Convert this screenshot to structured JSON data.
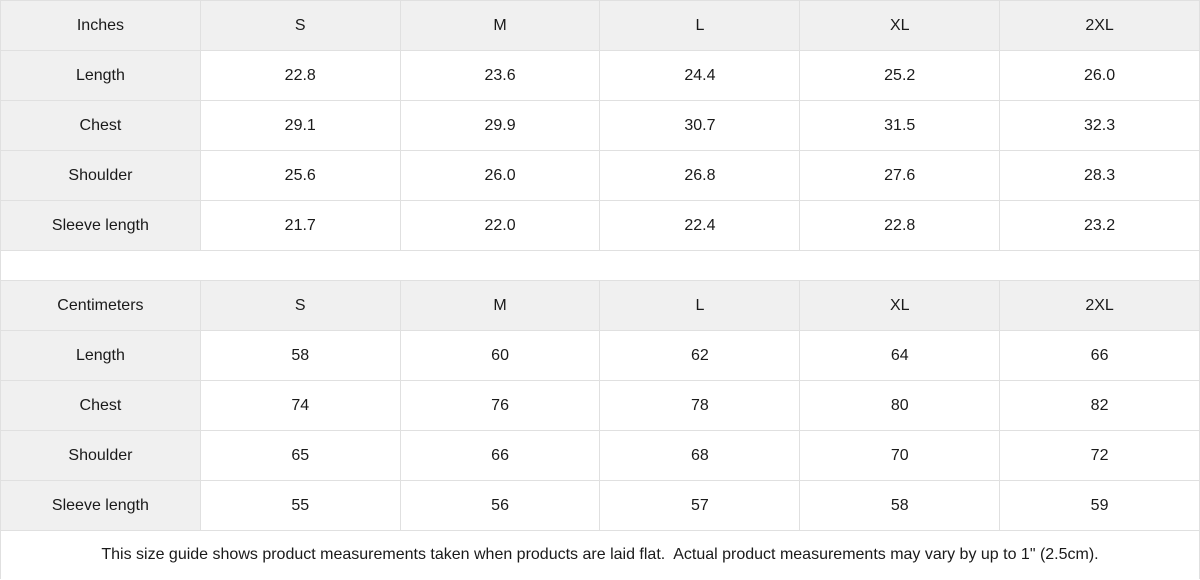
{
  "colors": {
    "header_bg": "#f0f0f0",
    "cell_bg": "#ffffff",
    "border": "#e0e0e0",
    "text": "#1a1a1a"
  },
  "tables": [
    {
      "unit_label": "Inches",
      "sizes": [
        "S",
        "M",
        "L",
        "XL",
        "2XL"
      ],
      "rows": [
        {
          "label": "Length",
          "values": [
            "22.8",
            "23.6",
            "24.4",
            "25.2",
            "26.0"
          ]
        },
        {
          "label": "Chest",
          "values": [
            "29.1",
            "29.9",
            "30.7",
            "31.5",
            "32.3"
          ]
        },
        {
          "label": "Shoulder",
          "values": [
            "25.6",
            "26.0",
            "26.8",
            "27.6",
            "28.3"
          ]
        },
        {
          "label": "Sleeve length",
          "values": [
            "21.7",
            "22.0",
            "22.4",
            "22.8",
            "23.2"
          ]
        }
      ]
    },
    {
      "unit_label": "Centimeters",
      "sizes": [
        "S",
        "M",
        "L",
        "XL",
        "2XL"
      ],
      "rows": [
        {
          "label": "Length",
          "values": [
            "58",
            "60",
            "62",
            "64",
            "66"
          ]
        },
        {
          "label": "Chest",
          "values": [
            "74",
            "76",
            "78",
            "80",
            "82"
          ]
        },
        {
          "label": "Shoulder",
          "values": [
            "65",
            "66",
            "68",
            "70",
            "72"
          ]
        },
        {
          "label": "Sleeve length",
          "values": [
            "55",
            "56",
            "57",
            "58",
            "59"
          ]
        }
      ]
    }
  ],
  "footer": {
    "note": "This size guide shows product measurements taken when products are laid flat.  Actual product measurements may vary by up to 1\" (2.5cm)."
  }
}
